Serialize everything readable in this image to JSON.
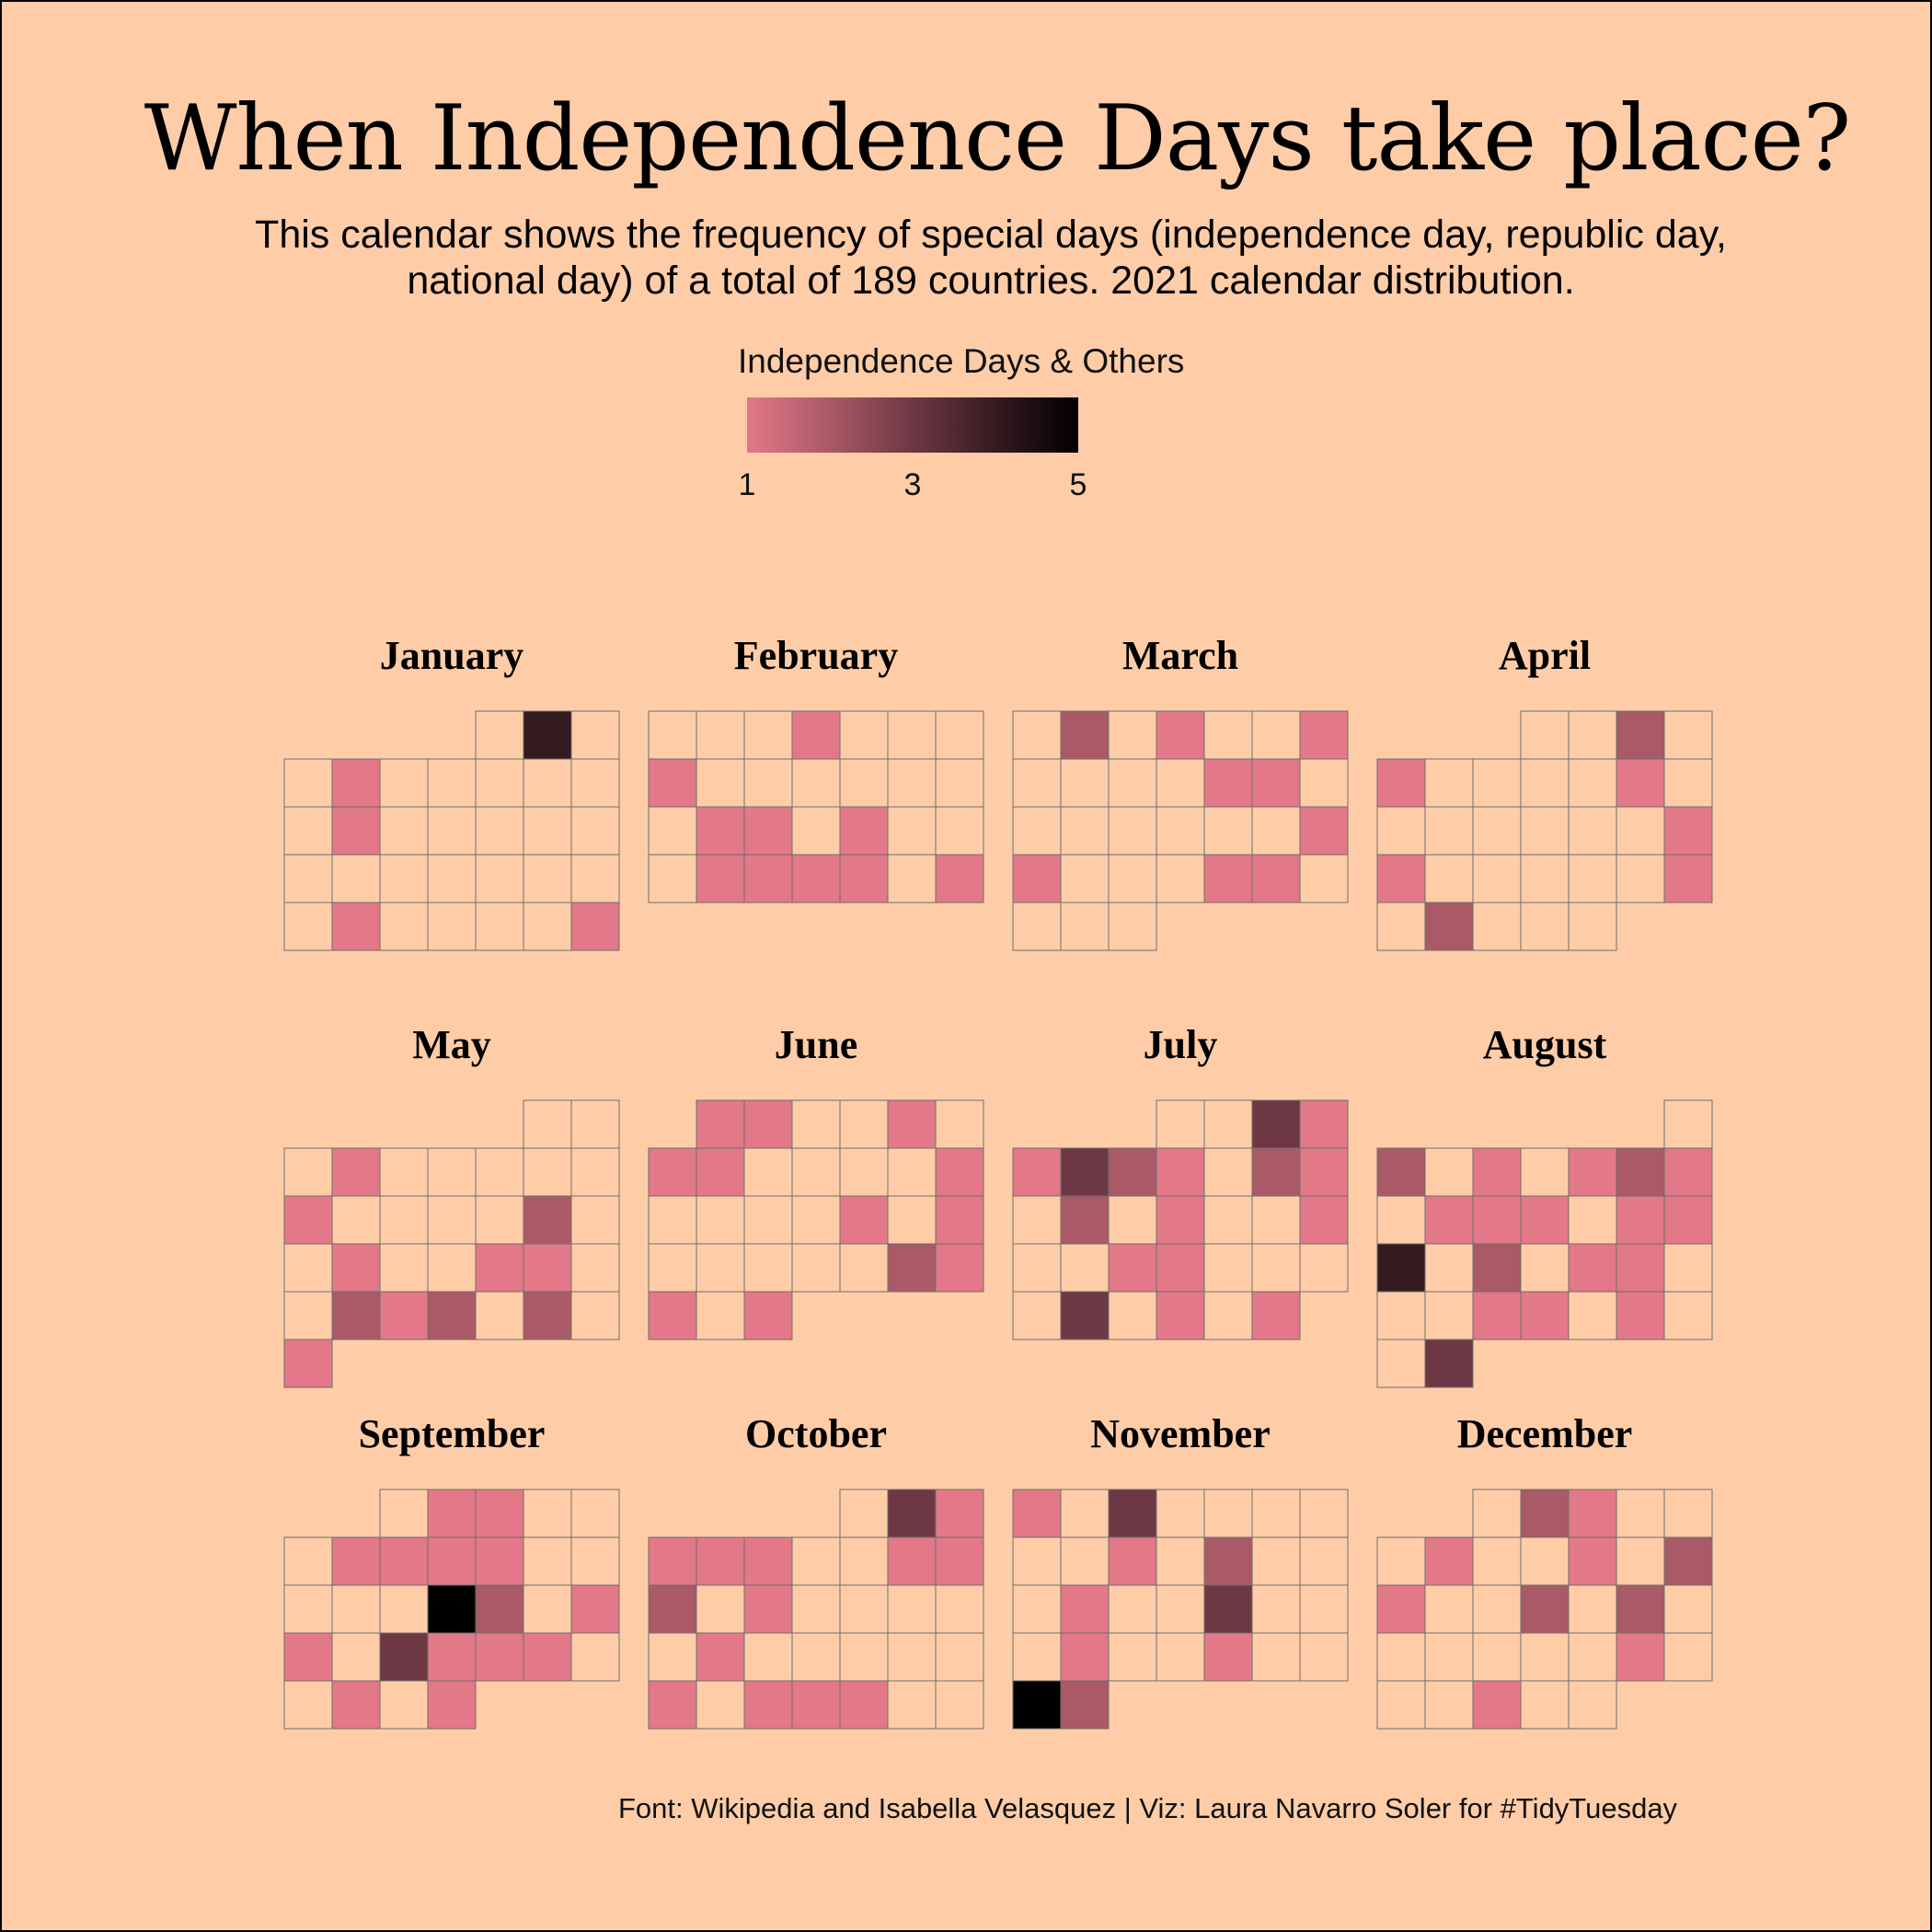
{
  "chart_data": {
    "type": "heatmap",
    "title": "When Independence Days take place?",
    "subtitle": "This calendar shows the frequency of special days (independence day, republic day, national day) of a total of 189 countries. 2021 calendar distribution.",
    "caption": "Font: Wikipedia and Isabella Velasquez | Viz: Laura Navarro Soler for #TidyTuesday",
    "year": 2021,
    "week_start": "Monday",
    "legend": {
      "title": "Independence Days & Others",
      "range": [
        1,
        5
      ],
      "ticks": [
        1,
        3,
        5
      ],
      "colors": [
        "#E27888",
        "#A95A66",
        "#6D3844",
        "#341B20",
        "#000000"
      ],
      "empty_color": "#FECDA8",
      "grid_color": "#6E6E6E"
    },
    "months": [
      {
        "name": "January",
        "counts": {
          "2": 4,
          "5": 1,
          "12": 1,
          "26": 1,
          "31": 1
        }
      },
      {
        "name": "February",
        "counts": {
          "4": 1,
          "8": 1,
          "16": 1,
          "17": 1,
          "19": 1,
          "23": 1,
          "24": 1,
          "25": 1,
          "26": 1,
          "28": 1
        }
      },
      {
        "name": "March",
        "counts": {
          "2": 2,
          "4": 1,
          "7": 1,
          "12": 1,
          "13": 1,
          "21": 1,
          "22": 1,
          "26": 1,
          "27": 1
        }
      },
      {
        "name": "April",
        "counts": {
          "3": 2,
          "5": 1,
          "10": 1,
          "18": 1,
          "19": 1,
          "25": 1,
          "27": 2
        }
      },
      {
        "name": "May",
        "counts": {
          "4": 1,
          "10": 1,
          "15": 2,
          "18": 1,
          "21": 1,
          "22": 1,
          "25": 2,
          "26": 1,
          "27": 2,
          "29": 2,
          "31": 1
        }
      },
      {
        "name": "June",
        "counts": {
          "2": 1,
          "5": 1,
          "7": 1,
          "8": 1,
          "13": 1,
          "18": 1,
          "20": 1,
          "26": 2,
          "27": 1,
          "28": 1,
          "30": 1,
          "1": 1
        }
      },
      {
        "name": "July",
        "counts": {
          "3": 3,
          "4": 1,
          "5": 1,
          "6": 3,
          "7": 2,
          "8": 1,
          "10": 2,
          "11": 1,
          "13": 2,
          "15": 1,
          "18": 1,
          "21": 1,
          "22": 1,
          "27": 3,
          "29": 1,
          "31": 1
        }
      },
      {
        "name": "August",
        "counts": {
          "2": 2,
          "4": 1,
          "6": 1,
          "7": 2,
          "8": 1,
          "10": 1,
          "11": 1,
          "12": 1,
          "14": 1,
          "15": 1,
          "16": 4,
          "18": 2,
          "20": 1,
          "21": 1,
          "25": 1,
          "26": 1,
          "28": 1,
          "31": 3
        }
      },
      {
        "name": "September",
        "counts": {
          "2": 1,
          "3": 1,
          "7": 1,
          "8": 1,
          "9": 1,
          "10": 1,
          "16": 5,
          "17": 2,
          "19": 1,
          "20": 1,
          "22": 3,
          "23": 1,
          "24": 1,
          "25": 1,
          "28": 1,
          "30": 1
        }
      },
      {
        "name": "October",
        "counts": {
          "2": 3,
          "3": 1,
          "4": 1,
          "5": 1,
          "6": 1,
          "9": 1,
          "10": 1,
          "11": 2,
          "13": 1,
          "19": 1,
          "25": 1,
          "27": 1,
          "28": 1,
          "29": 1
        }
      },
      {
        "name": "November",
        "counts": {
          "1": 1,
          "3": 3,
          "10": 1,
          "12": 2,
          "16": 1,
          "19": 3,
          "23": 1,
          "26": 1,
          "29": 5,
          "31": 0,
          "30": 2
        }
      },
      {
        "name": "December",
        "counts": {
          "2": 2,
          "3": 1,
          "7": 1,
          "10": 1,
          "12": 2,
          "13": 1,
          "16": 2,
          "18": 2,
          "25": 1,
          "29": 1
        }
      }
    ]
  }
}
